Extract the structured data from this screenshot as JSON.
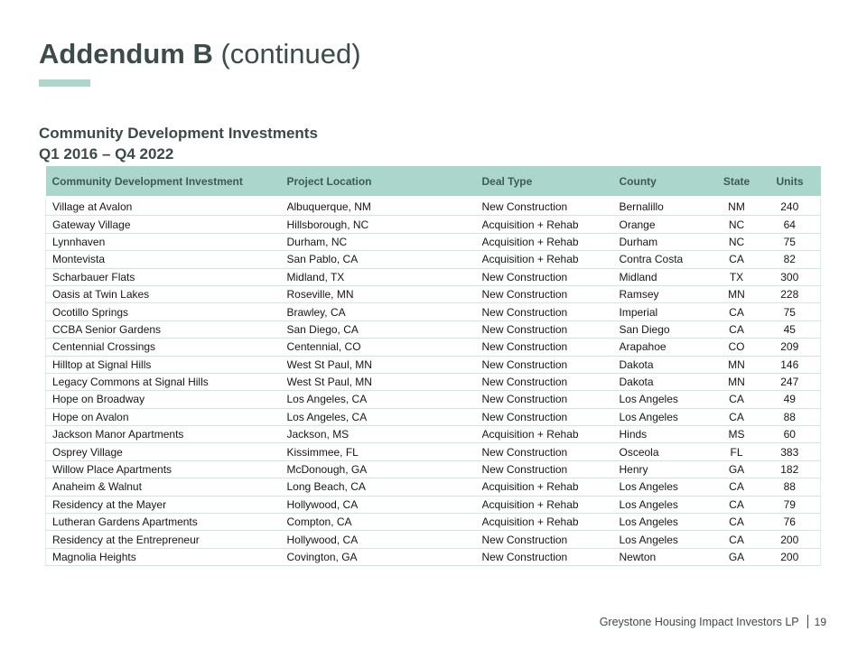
{
  "header": {
    "title_bold": "Addendum B",
    "title_suffix": " (continued)",
    "subtitle_line1": "Community Development Investments",
    "subtitle_line2": "Q1 2016 – Q4 2022"
  },
  "colors": {
    "accent_mint": "#AAD6CB",
    "dark_slate_text": "#3E4B4B",
    "table_header_text": "#3E5B55",
    "row_divider": "#CFE8E2",
    "body_text": "#161616"
  },
  "table": {
    "type": "table",
    "columns": [
      "Community Development Investment",
      "Project Location",
      "Deal Type",
      "County",
      "State",
      "Units"
    ],
    "column_keys": [
      "investment",
      "location",
      "deal-type",
      "county",
      "state",
      "units"
    ],
    "rows": [
      [
        "Village at Avalon",
        "Albuquerque, NM",
        "New Construction",
        "Bernalillo",
        "NM",
        "240"
      ],
      [
        "Gateway Village",
        "Hillsborough, NC",
        "Acquisition + Rehab",
        "Orange",
        "NC",
        "64"
      ],
      [
        "Lynnhaven",
        "Durham, NC",
        "Acquisition + Rehab",
        "Durham",
        "NC",
        "75"
      ],
      [
        "Montevista",
        "San Pablo, CA",
        "Acquisition + Rehab",
        "Contra Costa",
        "CA",
        "82"
      ],
      [
        "Scharbauer Flats",
        "Midland, TX",
        "New Construction",
        "Midland",
        "TX",
        "300"
      ],
      [
        "Oasis at Twin Lakes",
        "Roseville, MN",
        "New Construction",
        "Ramsey",
        "MN",
        "228"
      ],
      [
        "Ocotillo Springs",
        "Brawley, CA",
        "New Construction",
        "Imperial",
        "CA",
        "75"
      ],
      [
        "CCBA Senior Gardens",
        "San Diego, CA",
        "New Construction",
        "San Diego",
        "CA",
        "45"
      ],
      [
        "Centennial Crossings",
        "Centennial, CO",
        "New Construction",
        "Arapahoe",
        "CO",
        "209"
      ],
      [
        "Hilltop at Signal Hills",
        "West St Paul, MN",
        "New Construction",
        "Dakota",
        "MN",
        "146"
      ],
      [
        "Legacy Commons at Signal Hills",
        "West St Paul, MN",
        "New Construction",
        "Dakota",
        "MN",
        "247"
      ],
      [
        "Hope on Broadway",
        "Los Angeles, CA",
        "New Construction",
        "Los Angeles",
        "CA",
        "49"
      ],
      [
        "Hope on Avalon",
        "Los Angeles, CA",
        "New Construction",
        "Los Angeles",
        "CA",
        "88"
      ],
      [
        "Jackson Manor Apartments",
        "Jackson, MS",
        "Acquisition + Rehab",
        "Hinds",
        "MS",
        "60"
      ],
      [
        "Osprey Village",
        "Kissimmee, FL",
        "New Construction",
        "Osceola",
        "FL",
        "383"
      ],
      [
        "Willow Place Apartments",
        "McDonough, GA",
        "New Construction",
        "Henry",
        "GA",
        "182"
      ],
      [
        "Anaheim & Walnut",
        "Long Beach, CA",
        "Acquisition + Rehab",
        "Los Angeles",
        "CA",
        "88"
      ],
      [
        "Residency at the Mayer",
        "Hollywood, CA",
        "Acquisition + Rehab",
        "Los Angeles",
        "CA",
        "79"
      ],
      [
        "Lutheran Gardens Apartments",
        "Compton, CA",
        "Acquisition + Rehab",
        "Los Angeles",
        "CA",
        "76"
      ],
      [
        "Residency at the Entrepreneur",
        "Hollywood, CA",
        "New Construction",
        "Los Angeles",
        "CA",
        "200"
      ],
      [
        "Magnolia Heights",
        "Covington, GA",
        "New Construction",
        "Newton",
        "GA",
        "200"
      ]
    ]
  },
  "footer": {
    "company": "Greystone Housing Impact Investors LP",
    "page_number": "19"
  }
}
